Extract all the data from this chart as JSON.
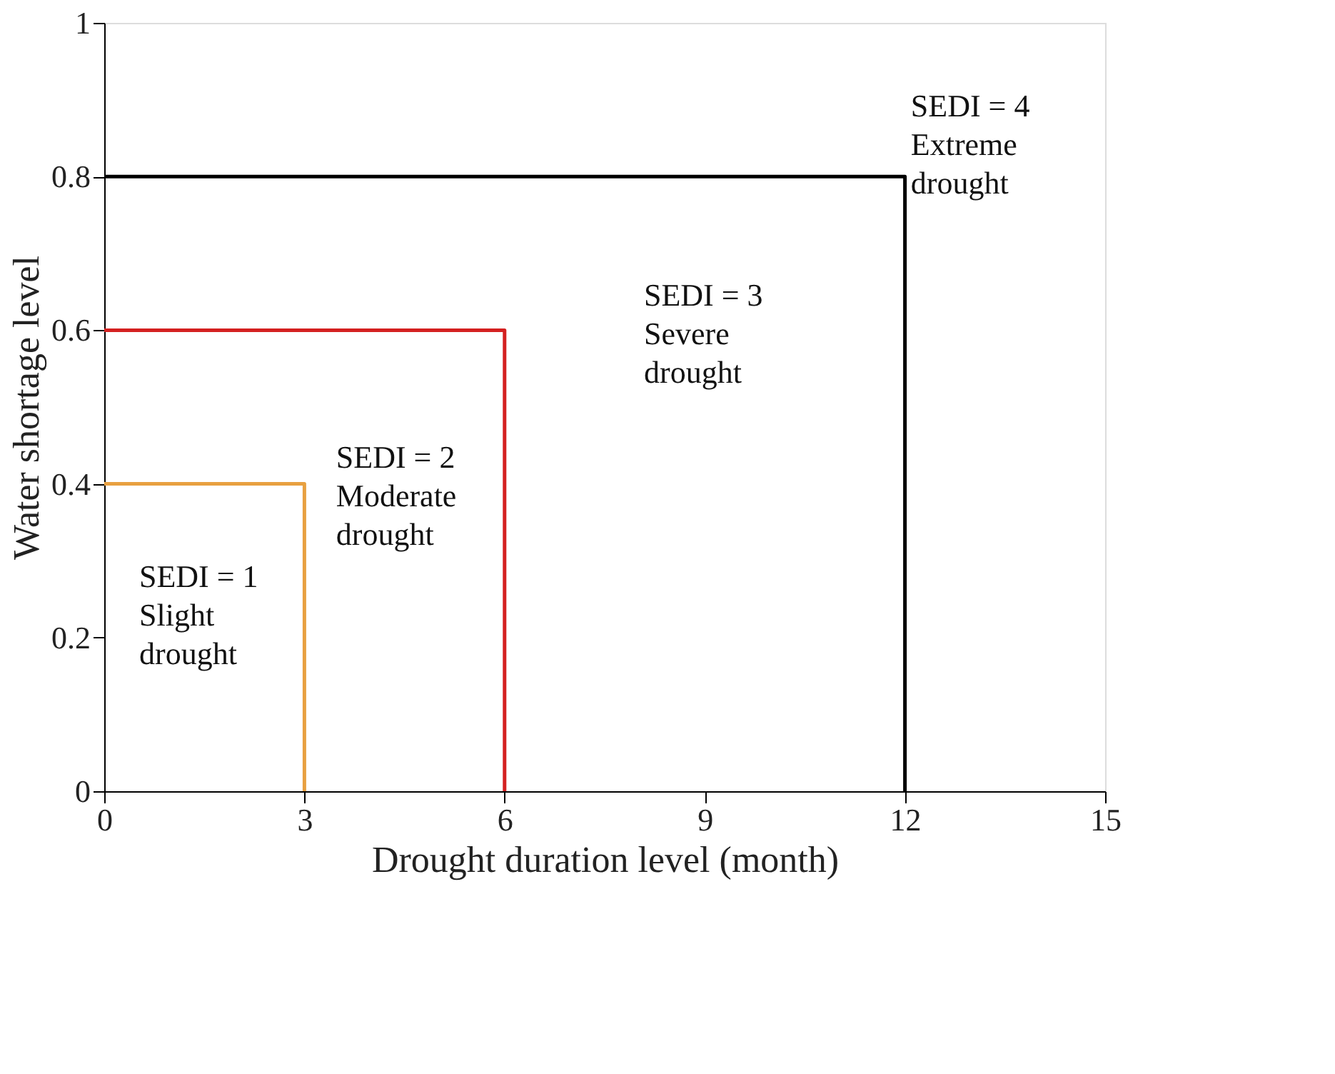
{
  "chart_data": {
    "type": "line",
    "xlabel": "Drought duration level (month)",
    "ylabel": "Water shortage level",
    "xlim": [
      0,
      15
    ],
    "xticks": [
      0,
      3,
      6,
      9,
      12,
      15
    ],
    "ylim": [
      0,
      1
    ],
    "yticks": [
      0,
      0.2,
      0.4,
      0.6,
      0.8,
      1
    ],
    "grid": false,
    "series": [
      {
        "color": "#e8a040",
        "x": [
          0,
          3,
          3
        ],
        "values": [
          0.4,
          0.4,
          0
        ]
      },
      {
        "color": "#d42020",
        "x": [
          0,
          6,
          6
        ],
        "values": [
          0.6,
          0.6,
          0
        ]
      },
      {
        "color": "#000000",
        "x": [
          0,
          12,
          12
        ],
        "values": [
          0.8,
          0.8,
          0
        ]
      }
    ],
    "annotations": [
      "SEDI = 1\nSlight\ndrought",
      "SEDI = 2\nModerate\ndrought",
      "SEDI = 3\nSevere\ndrought",
      "SEDI = 4\nExtreme\ndrought"
    ]
  }
}
